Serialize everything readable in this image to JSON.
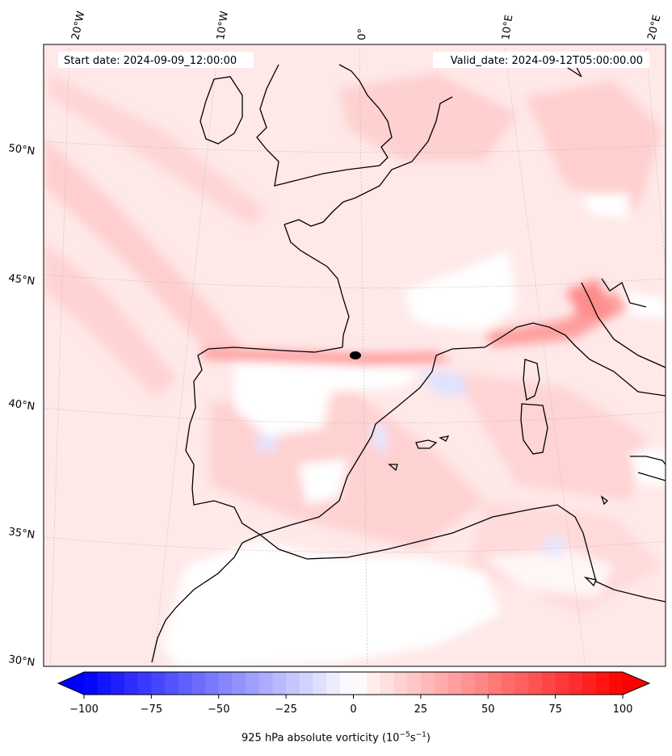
{
  "header": {
    "start_date": "Start date: 2024-09-09_12:00:00",
    "valid_date": "Valid_date: 2024-09-12T05:00:00.00"
  },
  "gridlines": {
    "lon_labels": [
      "20°W",
      "10°W",
      "0°",
      "10°E",
      "20°E"
    ],
    "lat_labels": [
      "50°N",
      "45°N",
      "40°N",
      "35°N",
      "30°N"
    ]
  },
  "colorbar": {
    "ticks": [
      "−100",
      "−75",
      "−50",
      "−25",
      "0",
      "25",
      "50",
      "75",
      "100"
    ],
    "min": -100,
    "max": 100,
    "levels": 40,
    "low_color": "#0000ff",
    "mid_color": "#ffffff",
    "high_color": "#ff0000",
    "title": "925 hPa absolute vorticity (10",
    "title_exp1": "−5",
    "title_mid": "s",
    "title_exp2": "−1",
    "title_end": ")"
  },
  "palette": {
    "land_line": "#000000",
    "field_base": "#ffe6e6",
    "field_pink": "#ffc8c8",
    "field_red": "#ff6666",
    "field_blue": "#e6e8ff"
  }
}
